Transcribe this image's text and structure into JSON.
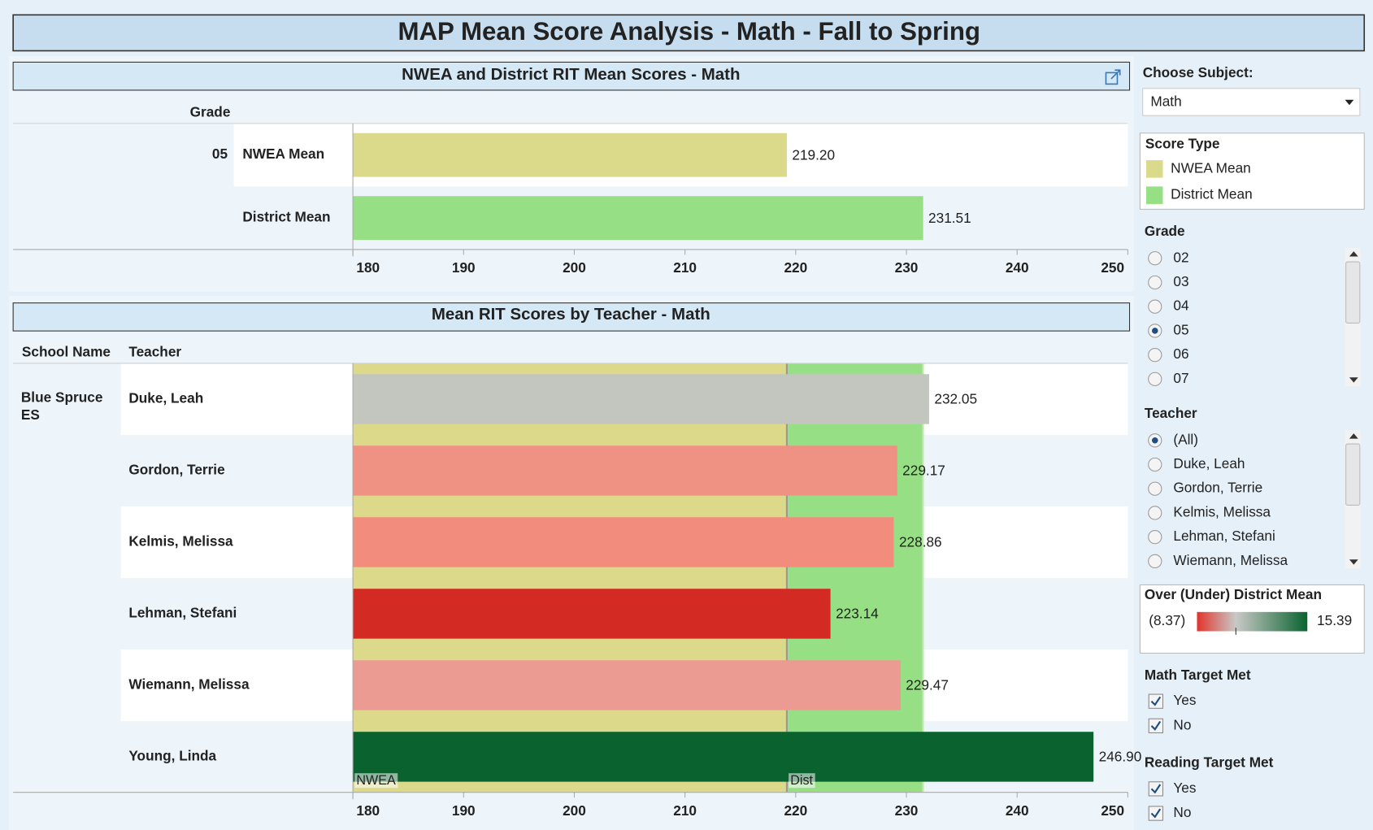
{
  "title": "MAP Mean Score Analysis - Math - Fall to Spring",
  "chart_data": [
    {
      "type": "bar",
      "orientation": "horizontal",
      "title": "NWEA and District RIT Mean Scores - Math",
      "row_header": "Grade",
      "group": "05",
      "categories": [
        "NWEA Mean",
        "District Mean"
      ],
      "values": [
        219.2,
        231.51
      ],
      "value_labels": [
        "219.20",
        "231.51"
      ],
      "colors": [
        "#dbd98a",
        "#97df85"
      ],
      "xlim": [
        180,
        250
      ],
      "xticks": [
        180,
        190,
        200,
        210,
        220,
        230,
        240,
        250
      ]
    },
    {
      "type": "bar",
      "orientation": "horizontal",
      "title": "Mean RIT Scores by Teacher - Math",
      "column_headers": [
        "School Name",
        "Teacher"
      ],
      "group": "Blue Spruce ES",
      "categories": [
        "Duke, Leah",
        "Gordon, Terrie",
        "Kelmis, Melissa",
        "Lehman, Stefani",
        "Wiemann, Melissa",
        "Young, Linda"
      ],
      "values": [
        232.05,
        229.17,
        228.86,
        223.14,
        229.47,
        246.9
      ],
      "value_labels": [
        "232.05",
        "229.17",
        "228.86",
        "223.14",
        "229.47",
        "246.90"
      ],
      "colors": [
        "#c3c6bf",
        "#ef9183",
        "#f28c7c",
        "#d42a24",
        "#eb9b91",
        "#0a632f"
      ],
      "reference_bands": [
        {
          "label": "NWEA",
          "value": 219.2,
          "color": "#dcd98b"
        },
        {
          "label": "Dist",
          "value": 231.51,
          "color": "#97df85"
        }
      ],
      "xlim": [
        180,
        250
      ],
      "xticks": [
        180,
        190,
        200,
        210,
        220,
        230,
        240,
        250
      ]
    }
  ],
  "filters": {
    "subject": {
      "label": "Choose Subject:",
      "value": "Math"
    },
    "score_type": {
      "title": "Score Type"
    },
    "grade": {
      "label": "Grade",
      "options": [
        "02",
        "03",
        "04",
        "05",
        "06",
        "07"
      ],
      "selected": 3
    },
    "teacher": {
      "label": "Teacher",
      "options": [
        "(All)",
        "Duke, Leah",
        "Gordon, Terrie",
        "Kelmis, Melissa",
        "Lehman, Stefani",
        "Wiemann, Melissa"
      ],
      "selected": 0
    },
    "color_legend": {
      "title": "Over (Under) District Mean",
      "min": {
        "value": -8.37,
        "label": "(8.37)"
      },
      "max": 15.39,
      "colors": [
        "#e3342c",
        "#c9c9c6",
        "#0a632f"
      ]
    },
    "math_target": {
      "label": "Math Target Met",
      "options": [
        "Yes",
        "No"
      ],
      "checked": [
        true,
        true
      ]
    },
    "reading_target": {
      "label": "Reading Target Met",
      "options": [
        "Yes",
        "No"
      ],
      "checked": [
        true,
        true
      ]
    }
  }
}
